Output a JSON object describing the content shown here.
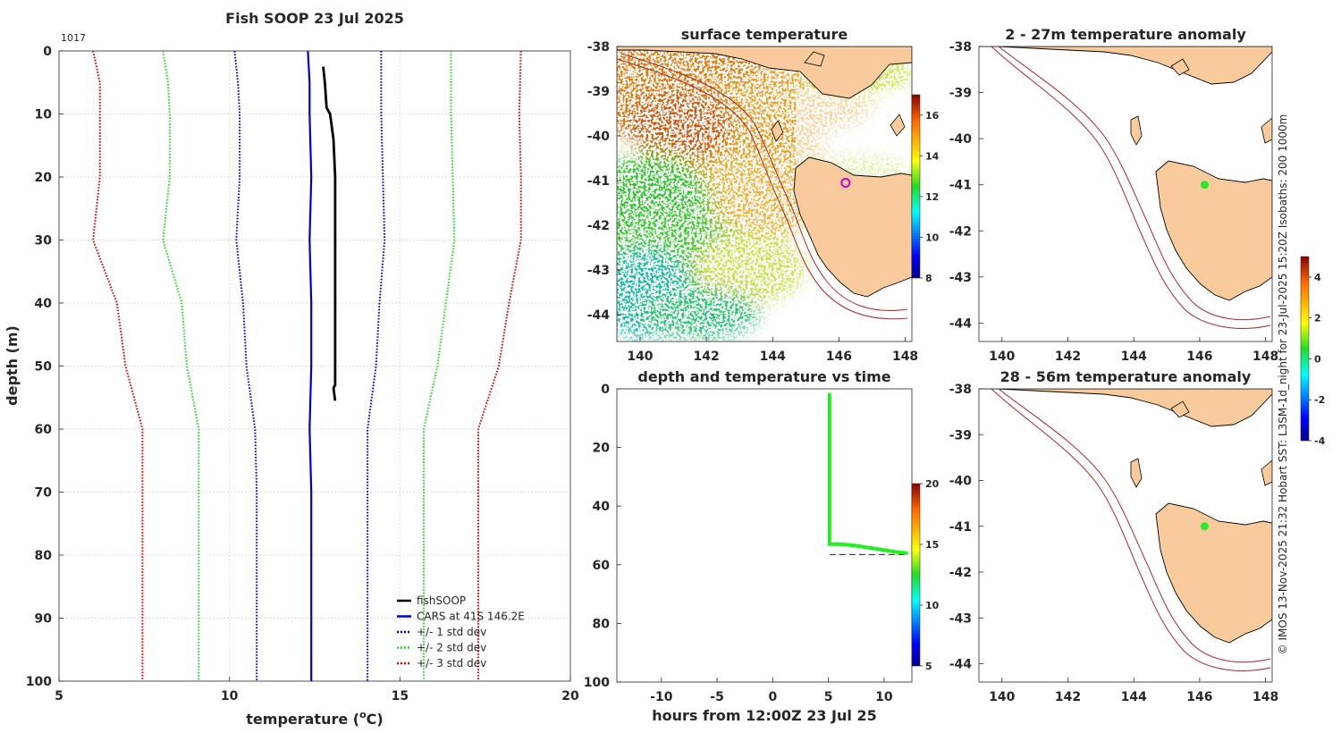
{
  "figure_title": "Fish SOOP 23 Jul 2025",
  "credit": "© IMOS 13-Nov-2025 21:32 Hobart SST: L3SM-1d_night for 23-Jul-2025 15:20Z Isobaths: 200  1000m",
  "colors": {
    "land": "#f9cb9c",
    "coast": "#000000",
    "isobath": "#a52a2a",
    "fish": "#000000",
    "cars": "#0000cc",
    "std1": "#0000dd",
    "std2": "#22dd22",
    "std3": "#dd0000",
    "marker_green": "#22ee22",
    "marker_magenta": "#cc00cc"
  },
  "chart_data": [
    {
      "id": "profile",
      "type": "line",
      "title": "Fish SOOP 23 Jul 2025",
      "annotation": "1017",
      "xlabel_main": "temperature (",
      "xlabel_sup": "o",
      "xlabel_end": "C)",
      "ylabel": "depth (m)",
      "xlim": [
        5,
        20
      ],
      "ylim": [
        0,
        100
      ],
      "y_reversed": true,
      "grid": true,
      "xticks": [
        5,
        10,
        15,
        20
      ],
      "yticks": [
        0,
        10,
        20,
        30,
        40,
        50,
        60,
        70,
        80,
        90,
        100
      ],
      "legend_position": "bottom-right",
      "series": [
        {
          "name": "fishSOOP",
          "style": "solid",
          "color": "#000000",
          "points": [
            [
              12.75,
              2.5
            ],
            [
              12.8,
              5
            ],
            [
              12.85,
              9
            ],
            [
              12.95,
              10
            ],
            [
              13.0,
              12
            ],
            [
              13.05,
              14
            ],
            [
              13.1,
              20
            ],
            [
              13.1,
              30
            ],
            [
              13.1,
              40
            ],
            [
              13.1,
              50
            ],
            [
              13.1,
              53
            ],
            [
              13.05,
              53.5
            ],
            [
              13.1,
              55.5
            ]
          ]
        },
        {
          "name": "CARS at 41S 146.2E",
          "style": "solid",
          "color": "#0000cc",
          "points": [
            [
              12.3,
              0
            ],
            [
              12.35,
              5
            ],
            [
              12.35,
              10
            ],
            [
              12.4,
              20
            ],
            [
              12.35,
              30
            ],
            [
              12.4,
              40
            ],
            [
              12.4,
              50
            ],
            [
              12.35,
              60
            ],
            [
              12.4,
              70
            ],
            [
              12.4,
              80
            ],
            [
              12.4,
              90
            ],
            [
              12.4,
              100
            ]
          ]
        },
        {
          "name": "+/- 1 std dev",
          "style": "dotted",
          "color": "#0000dd",
          "points_left": [
            [
              10.15,
              0
            ],
            [
              10.25,
              5
            ],
            [
              10.3,
              10
            ],
            [
              10.3,
              20
            ],
            [
              10.2,
              30
            ],
            [
              10.4,
              40
            ],
            [
              10.5,
              50
            ],
            [
              10.75,
              60
            ],
            [
              10.8,
              70
            ],
            [
              10.8,
              100
            ]
          ],
          "points_right": [
            [
              14.45,
              0
            ],
            [
              14.45,
              10
            ],
            [
              14.5,
              20
            ],
            [
              14.55,
              30
            ],
            [
              14.4,
              40
            ],
            [
              14.3,
              50
            ],
            [
              14.05,
              60
            ],
            [
              14.05,
              100
            ]
          ]
        },
        {
          "name": "+/- 2 std dev",
          "style": "dotted",
          "color": "#22dd22",
          "points_left": [
            [
              8.05,
              0
            ],
            [
              8.2,
              5
            ],
            [
              8.25,
              10
            ],
            [
              8.25,
              20
            ],
            [
              8.05,
              30
            ],
            [
              8.6,
              40
            ],
            [
              8.75,
              50
            ],
            [
              9.1,
              60
            ],
            [
              9.1,
              100
            ]
          ],
          "points_right": [
            [
              16.5,
              0
            ],
            [
              16.5,
              10
            ],
            [
              16.55,
              20
            ],
            [
              16.6,
              30
            ],
            [
              16.35,
              40
            ],
            [
              16.1,
              50
            ],
            [
              15.7,
              60
            ],
            [
              15.7,
              100
            ]
          ]
        },
        {
          "name": "+/- 3 std dev",
          "style": "dotted",
          "color": "#dd0000",
          "points_left": [
            [
              6.0,
              0
            ],
            [
              6.2,
              5
            ],
            [
              6.2,
              10
            ],
            [
              6.2,
              20
            ],
            [
              6.0,
              30
            ],
            [
              6.7,
              40
            ],
            [
              6.95,
              50
            ],
            [
              7.45,
              60
            ],
            [
              7.45,
              100
            ]
          ],
          "points_right": [
            [
              18.55,
              0
            ],
            [
              18.5,
              10
            ],
            [
              18.55,
              20
            ],
            [
              18.55,
              30
            ],
            [
              18.2,
              40
            ],
            [
              17.9,
              50
            ],
            [
              17.3,
              60
            ],
            [
              17.3,
              100
            ]
          ]
        }
      ]
    },
    {
      "id": "sst_map",
      "type": "heatmap",
      "title": "surface temperature",
      "xlim": [
        139.3,
        148.2
      ],
      "ylim": [
        -44.6,
        -38
      ],
      "xticks": [
        140,
        142,
        144,
        146,
        148
      ],
      "yticks": [
        -38,
        -39,
        -40,
        -41,
        -42,
        -43,
        -44
      ],
      "colorbar": {
        "min": 8,
        "max": 17,
        "ticks": [
          8,
          10,
          12,
          14,
          16
        ]
      },
      "marker": {
        "lon": 146.2,
        "lat": -41.05,
        "style": "open-circle",
        "color": "#cc00cc"
      }
    },
    {
      "id": "depth_time",
      "type": "scatter",
      "title": "depth and temperature vs time",
      "xlabel": "hours from 12:00Z 23 Jul 25",
      "xlim": [
        -14,
        12.5
      ],
      "ylim": [
        0,
        100
      ],
      "y_reversed": true,
      "xticks": [
        -10,
        -5,
        0,
        5,
        10
      ],
      "yticks": [
        0,
        20,
        40,
        60,
        80,
        100
      ],
      "colorbar": {
        "min": 5,
        "max": 20,
        "ticks": [
          5,
          10,
          15,
          20
        ]
      },
      "max_depth_line": 56.5,
      "descent": {
        "t": 5.1,
        "depth_from": 2,
        "depth_to": 53
      },
      "bottom_track": [
        [
          5.3,
          53
        ],
        [
          6,
          53
        ],
        [
          7,
          53.3
        ],
        [
          8,
          53.8
        ],
        [
          9,
          54.4
        ],
        [
          10,
          55
        ],
        [
          11,
          55.6
        ],
        [
          12,
          56
        ]
      ]
    },
    {
      "id": "anom_upper",
      "type": "heatmap",
      "title": "2 - 27m temperature anomaly",
      "xlim": [
        139.3,
        148.2
      ],
      "ylim": [
        -44.4,
        -38
      ],
      "xticks": [
        140,
        142,
        144,
        146,
        148
      ],
      "yticks": [
        -38,
        -39,
        -40,
        -41,
        -42,
        -43,
        -44
      ],
      "marker": {
        "lon": 146.15,
        "lat": -41.0
      }
    },
    {
      "id": "anom_lower",
      "type": "heatmap",
      "title": "28 - 56m temperature anomaly",
      "xlim": [
        139.3,
        148.2
      ],
      "ylim": [
        -44.4,
        -38
      ],
      "xticks": [
        140,
        142,
        144,
        146,
        148
      ],
      "yticks": [
        -38,
        -39,
        -40,
        -41,
        -42,
        -43,
        -44
      ],
      "marker": {
        "lon": 146.15,
        "lat": -41.0
      },
      "colorbar": {
        "min": -4,
        "max": 5,
        "ticks": [
          -4,
          -2,
          0,
          2,
          4
        ]
      }
    }
  ]
}
